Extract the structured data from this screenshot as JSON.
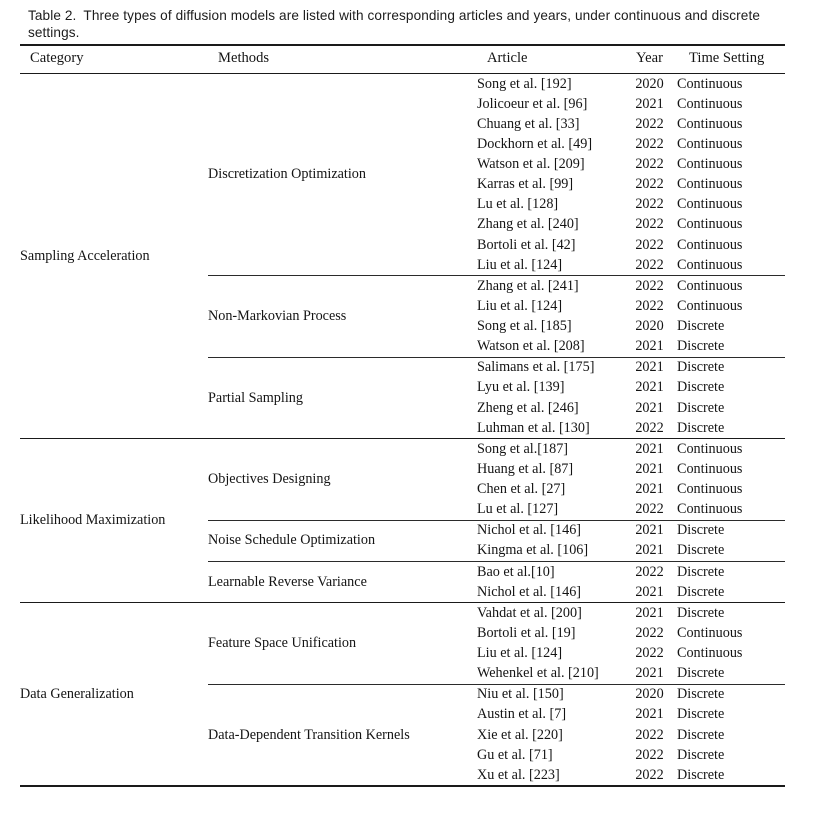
{
  "caption": {
    "label": "Table 2.",
    "text": "Three types of diffusion models are listed with corresponding articles and years, under continuous and discrete settings."
  },
  "table": {
    "columns": [
      "Category",
      "Methods",
      "Article",
      "Year",
      "Time Setting"
    ],
    "categories": [
      {
        "name": "Sampling Acceleration",
        "methods": [
          {
            "name": "Discretization Optimization",
            "rows": [
              {
                "article": "Song et al. [192]",
                "year": "2020",
                "time_setting": "Continuous"
              },
              {
                "article": "Jolicoeur et al. [96]",
                "year": "2021",
                "time_setting": "Continuous"
              },
              {
                "article": "Chuang et al. [33]",
                "year": "2022",
                "time_setting": "Continuous"
              },
              {
                "article": "Dockhorn et al. [49]",
                "year": "2022",
                "time_setting": "Continuous"
              },
              {
                "article": "Watson et al. [209]",
                "year": "2022",
                "time_setting": "Continuous"
              },
              {
                "article": "Karras et al. [99]",
                "year": "2022",
                "time_setting": "Continuous"
              },
              {
                "article": "Lu et al. [128]",
                "year": "2022",
                "time_setting": "Continuous"
              },
              {
                "article": "Zhang et al. [240]",
                "year": "2022",
                "time_setting": "Continuous"
              },
              {
                "article": "Bortoli et al. [42]",
                "year": "2022",
                "time_setting": "Continuous"
              },
              {
                "article": "Liu et al. [124]",
                "year": "2022",
                "time_setting": "Continuous"
              }
            ]
          },
          {
            "name": "Non-Markovian Process",
            "rows": [
              {
                "article": "Zhang et al. [241]",
                "year": "2022",
                "time_setting": "Continuous"
              },
              {
                "article": "Liu et al. [124]",
                "year": "2022",
                "time_setting": "Continuous"
              },
              {
                "article": "Song et al. [185]",
                "year": "2020",
                "time_setting": "Discrete"
              },
              {
                "article": "Watson et al. [208]",
                "year": "2021",
                "time_setting": "Discrete"
              }
            ]
          },
          {
            "name": "Partial Sampling",
            "rows": [
              {
                "article": "Salimans et al. [175]",
                "year": "2021",
                "time_setting": "Discrete"
              },
              {
                "article": "Lyu et al. [139]",
                "year": "2021",
                "time_setting": "Discrete"
              },
              {
                "article": "Zheng et al. [246]",
                "year": "2021",
                "time_setting": "Discrete"
              },
              {
                "article": "Luhman et al. [130]",
                "year": "2022",
                "time_setting": "Discrete"
              }
            ]
          }
        ]
      },
      {
        "name": "Likelihood Maximization",
        "methods": [
          {
            "name": "Objectives Designing",
            "rows": [
              {
                "article": "Song et al.[187]",
                "year": "2021",
                "time_setting": "Continuous"
              },
              {
                "article": "Huang et al. [87]",
                "year": "2021",
                "time_setting": "Continuous"
              },
              {
                "article": "Chen et al. [27]",
                "year": "2021",
                "time_setting": "Continuous"
              },
              {
                "article": "Lu et al. [127]",
                "year": "2022",
                "time_setting": "Continuous"
              }
            ]
          },
          {
            "name": "Noise Schedule Optimization",
            "rows": [
              {
                "article": "Nichol et al. [146]",
                "year": "2021",
                "time_setting": "Discrete"
              },
              {
                "article": "Kingma et al. [106]",
                "year": "2021",
                "time_setting": "Discrete"
              }
            ]
          },
          {
            "name": "Learnable Reverse Variance",
            "rows": [
              {
                "article": "Bao et al.[10]",
                "year": "2022",
                "time_setting": "Discrete"
              },
              {
                "article": "Nichol et al. [146]",
                "year": "2021",
                "time_setting": "Discrete"
              }
            ]
          }
        ]
      },
      {
        "name": "Data Generalization",
        "methods": [
          {
            "name": "Feature Space Unification",
            "rows": [
              {
                "article": "Vahdat et al. [200]",
                "year": "2021",
                "time_setting": "Discrete"
              },
              {
                "article": "Bortoli et al. [19]",
                "year": "2022",
                "time_setting": "Continuous"
              },
              {
                "article": "Liu et al. [124]",
                "year": "2022",
                "time_setting": "Continuous"
              },
              {
                "article": "Wehenkel et al. [210]",
                "year": "2021",
                "time_setting": "Discrete"
              }
            ]
          },
          {
            "name": "Data-Dependent Transition Kernels",
            "rows": [
              {
                "article": "Niu et al. [150]",
                "year": "2020",
                "time_setting": "Discrete"
              },
              {
                "article": "Austin et al. [7]",
                "year": "2021",
                "time_setting": "Discrete"
              },
              {
                "article": "Xie et al. [220]",
                "year": "2022",
                "time_setting": "Discrete"
              },
              {
                "article": "Gu et al. [71]",
                "year": "2022",
                "time_setting": "Discrete"
              },
              {
                "article": "Xu et al. [223]",
                "year": "2022",
                "time_setting": "Discrete"
              }
            ]
          }
        ]
      }
    ]
  }
}
